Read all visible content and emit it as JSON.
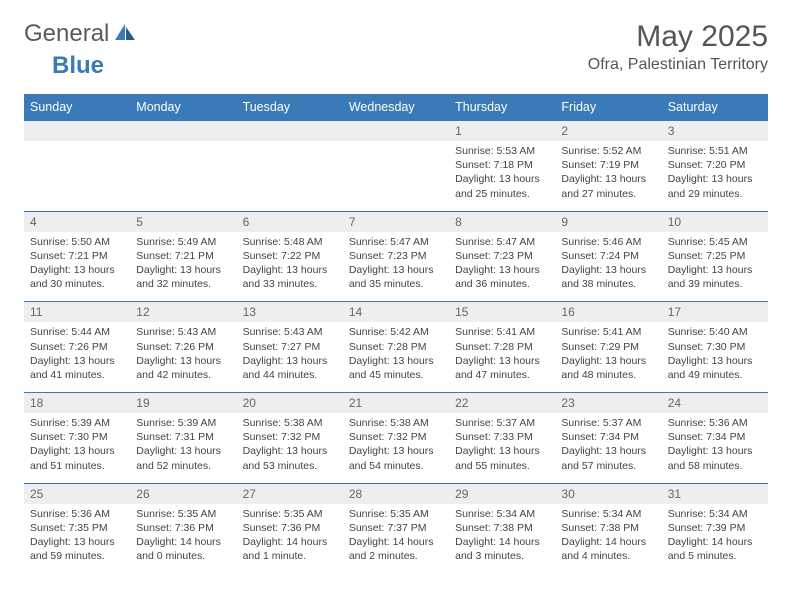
{
  "logo": {
    "text1": "General",
    "text2": "Blue"
  },
  "title": "May 2025",
  "location": "Ofra, Palestinian Territory",
  "weekday_colors": {
    "header_bg": "#3a7ab8",
    "header_text": "#ffffff",
    "daynum_bg": "#eeeeee",
    "border": "#3a7ab8"
  },
  "weekdays": [
    "Sunday",
    "Monday",
    "Tuesday",
    "Wednesday",
    "Thursday",
    "Friday",
    "Saturday"
  ],
  "weeks": [
    {
      "nums": [
        "",
        "",
        "",
        "",
        "1",
        "2",
        "3"
      ],
      "cells": [
        null,
        null,
        null,
        null,
        {
          "sunrise": "Sunrise: 5:53 AM",
          "sunset": "Sunset: 7:18 PM",
          "day1": "Daylight: 13 hours",
          "day2": "and 25 minutes."
        },
        {
          "sunrise": "Sunrise: 5:52 AM",
          "sunset": "Sunset: 7:19 PM",
          "day1": "Daylight: 13 hours",
          "day2": "and 27 minutes."
        },
        {
          "sunrise": "Sunrise: 5:51 AM",
          "sunset": "Sunset: 7:20 PM",
          "day1": "Daylight: 13 hours",
          "day2": "and 29 minutes."
        }
      ]
    },
    {
      "nums": [
        "4",
        "5",
        "6",
        "7",
        "8",
        "9",
        "10"
      ],
      "cells": [
        {
          "sunrise": "Sunrise: 5:50 AM",
          "sunset": "Sunset: 7:21 PM",
          "day1": "Daylight: 13 hours",
          "day2": "and 30 minutes."
        },
        {
          "sunrise": "Sunrise: 5:49 AM",
          "sunset": "Sunset: 7:21 PM",
          "day1": "Daylight: 13 hours",
          "day2": "and 32 minutes."
        },
        {
          "sunrise": "Sunrise: 5:48 AM",
          "sunset": "Sunset: 7:22 PM",
          "day1": "Daylight: 13 hours",
          "day2": "and 33 minutes."
        },
        {
          "sunrise": "Sunrise: 5:47 AM",
          "sunset": "Sunset: 7:23 PM",
          "day1": "Daylight: 13 hours",
          "day2": "and 35 minutes."
        },
        {
          "sunrise": "Sunrise: 5:47 AM",
          "sunset": "Sunset: 7:23 PM",
          "day1": "Daylight: 13 hours",
          "day2": "and 36 minutes."
        },
        {
          "sunrise": "Sunrise: 5:46 AM",
          "sunset": "Sunset: 7:24 PM",
          "day1": "Daylight: 13 hours",
          "day2": "and 38 minutes."
        },
        {
          "sunrise": "Sunrise: 5:45 AM",
          "sunset": "Sunset: 7:25 PM",
          "day1": "Daylight: 13 hours",
          "day2": "and 39 minutes."
        }
      ]
    },
    {
      "nums": [
        "11",
        "12",
        "13",
        "14",
        "15",
        "16",
        "17"
      ],
      "cells": [
        {
          "sunrise": "Sunrise: 5:44 AM",
          "sunset": "Sunset: 7:26 PM",
          "day1": "Daylight: 13 hours",
          "day2": "and 41 minutes."
        },
        {
          "sunrise": "Sunrise: 5:43 AM",
          "sunset": "Sunset: 7:26 PM",
          "day1": "Daylight: 13 hours",
          "day2": "and 42 minutes."
        },
        {
          "sunrise": "Sunrise: 5:43 AM",
          "sunset": "Sunset: 7:27 PM",
          "day1": "Daylight: 13 hours",
          "day2": "and 44 minutes."
        },
        {
          "sunrise": "Sunrise: 5:42 AM",
          "sunset": "Sunset: 7:28 PM",
          "day1": "Daylight: 13 hours",
          "day2": "and 45 minutes."
        },
        {
          "sunrise": "Sunrise: 5:41 AM",
          "sunset": "Sunset: 7:28 PM",
          "day1": "Daylight: 13 hours",
          "day2": "and 47 minutes."
        },
        {
          "sunrise": "Sunrise: 5:41 AM",
          "sunset": "Sunset: 7:29 PM",
          "day1": "Daylight: 13 hours",
          "day2": "and 48 minutes."
        },
        {
          "sunrise": "Sunrise: 5:40 AM",
          "sunset": "Sunset: 7:30 PM",
          "day1": "Daylight: 13 hours",
          "day2": "and 49 minutes."
        }
      ]
    },
    {
      "nums": [
        "18",
        "19",
        "20",
        "21",
        "22",
        "23",
        "24"
      ],
      "cells": [
        {
          "sunrise": "Sunrise: 5:39 AM",
          "sunset": "Sunset: 7:30 PM",
          "day1": "Daylight: 13 hours",
          "day2": "and 51 minutes."
        },
        {
          "sunrise": "Sunrise: 5:39 AM",
          "sunset": "Sunset: 7:31 PM",
          "day1": "Daylight: 13 hours",
          "day2": "and 52 minutes."
        },
        {
          "sunrise": "Sunrise: 5:38 AM",
          "sunset": "Sunset: 7:32 PM",
          "day1": "Daylight: 13 hours",
          "day2": "and 53 minutes."
        },
        {
          "sunrise": "Sunrise: 5:38 AM",
          "sunset": "Sunset: 7:32 PM",
          "day1": "Daylight: 13 hours",
          "day2": "and 54 minutes."
        },
        {
          "sunrise": "Sunrise: 5:37 AM",
          "sunset": "Sunset: 7:33 PM",
          "day1": "Daylight: 13 hours",
          "day2": "and 55 minutes."
        },
        {
          "sunrise": "Sunrise: 5:37 AM",
          "sunset": "Sunset: 7:34 PM",
          "day1": "Daylight: 13 hours",
          "day2": "and 57 minutes."
        },
        {
          "sunrise": "Sunrise: 5:36 AM",
          "sunset": "Sunset: 7:34 PM",
          "day1": "Daylight: 13 hours",
          "day2": "and 58 minutes."
        }
      ]
    },
    {
      "nums": [
        "25",
        "26",
        "27",
        "28",
        "29",
        "30",
        "31"
      ],
      "cells": [
        {
          "sunrise": "Sunrise: 5:36 AM",
          "sunset": "Sunset: 7:35 PM",
          "day1": "Daylight: 13 hours",
          "day2": "and 59 minutes."
        },
        {
          "sunrise": "Sunrise: 5:35 AM",
          "sunset": "Sunset: 7:36 PM",
          "day1": "Daylight: 14 hours",
          "day2": "and 0 minutes."
        },
        {
          "sunrise": "Sunrise: 5:35 AM",
          "sunset": "Sunset: 7:36 PM",
          "day1": "Daylight: 14 hours",
          "day2": "and 1 minute."
        },
        {
          "sunrise": "Sunrise: 5:35 AM",
          "sunset": "Sunset: 7:37 PM",
          "day1": "Daylight: 14 hours",
          "day2": "and 2 minutes."
        },
        {
          "sunrise": "Sunrise: 5:34 AM",
          "sunset": "Sunset: 7:38 PM",
          "day1": "Daylight: 14 hours",
          "day2": "and 3 minutes."
        },
        {
          "sunrise": "Sunrise: 5:34 AM",
          "sunset": "Sunset: 7:38 PM",
          "day1": "Daylight: 14 hours",
          "day2": "and 4 minutes."
        },
        {
          "sunrise": "Sunrise: 5:34 AM",
          "sunset": "Sunset: 7:39 PM",
          "day1": "Daylight: 14 hours",
          "day2": "and 5 minutes."
        }
      ]
    }
  ]
}
